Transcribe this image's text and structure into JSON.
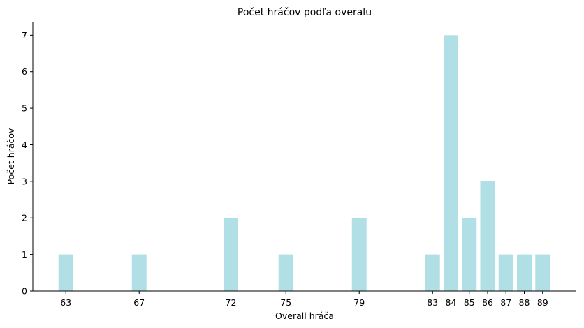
{
  "chart_data": {
    "type": "bar",
    "title": "Počet hráčov podľa overalu",
    "xlabel": "Overall hráča",
    "ylabel": "Počet hráčov",
    "x": [
      63,
      67,
      72,
      75,
      79,
      83,
      84,
      85,
      86,
      87,
      88,
      89
    ],
    "values": [
      1,
      1,
      2,
      1,
      2,
      1,
      7,
      2,
      3,
      1,
      1,
      1
    ],
    "xticks": [
      "63",
      "67",
      "72",
      "75",
      "79",
      "83",
      "84",
      "85",
      "86",
      "87",
      "88",
      "89"
    ],
    "yticks": [
      "0",
      "1",
      "2",
      "3",
      "4",
      "5",
      "6",
      "7"
    ],
    "xlim": [
      61.2,
      90.8
    ],
    "ylim": [
      0,
      7.35
    ],
    "bar_color": "#b0dfe5",
    "grid": false,
    "legend": "none"
  }
}
